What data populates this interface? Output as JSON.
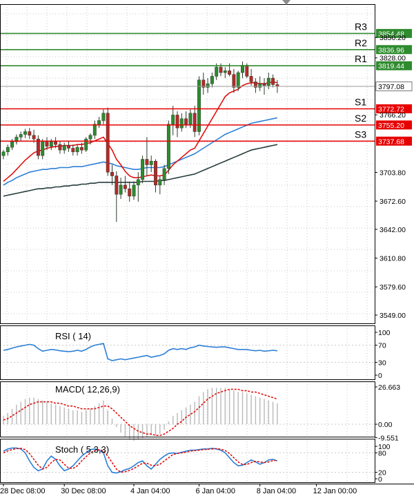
{
  "chart_data": [
    {
      "type": "candlestick",
      "y_ticks": [
        "3850.20",
        "3828.00",
        "3797.08",
        "3766.20",
        "3703.80",
        "3672.60",
        "3642.00",
        "3610.80",
        "3579.60",
        "3549.00"
      ],
      "y_tick_values": [
        3850.2,
        3828.0,
        3797.08,
        3766.2,
        3703.8,
        3672.6,
        3642.0,
        3610.8,
        3579.6,
        3549.0
      ],
      "ylim": [
        3535,
        3860
      ],
      "x_ticks": [
        "28 Dec 08:00",
        "30 Dec 08:00",
        "4 Jan 04:00",
        "6 Jan 04:00",
        "8 Jan 04:00",
        "12 Jan 00:00"
      ],
      "x_tick_index": [
        0,
        14,
        30,
        45,
        59,
        72
      ],
      "current_price": {
        "value": 3797.08,
        "label": "3797.08"
      },
      "levels": [
        {
          "name": "R3",
          "value": 3854.48,
          "label": "3854.48",
          "color": "#2e8b2e"
        },
        {
          "name": "R2",
          "value": 3836.96,
          "label": "3836.96",
          "color": "#2e8b2e"
        },
        {
          "name": "R1",
          "value": 3819.44,
          "label": "3819.44",
          "color": "#2e8b2e"
        },
        {
          "name": "S1",
          "value": 3772.72,
          "label": "3772.72",
          "color": "#e60000"
        },
        {
          "name": "S2",
          "value": 3755.2,
          "label": "3755.20",
          "color": "#e60000"
        },
        {
          "name": "S3",
          "value": 3737.68,
          "label": "3737.68",
          "color": "#e60000"
        }
      ],
      "candles": [
        {
          "o": 3722,
          "h": 3728,
          "l": 3718,
          "c": 3726
        },
        {
          "o": 3726,
          "h": 3734,
          "l": 3722,
          "c": 3731
        },
        {
          "o": 3731,
          "h": 3740,
          "l": 3728,
          "c": 3737
        },
        {
          "o": 3737,
          "h": 3745,
          "l": 3734,
          "c": 3742
        },
        {
          "o": 3742,
          "h": 3748,
          "l": 3738,
          "c": 3745
        },
        {
          "o": 3745,
          "h": 3751,
          "l": 3741,
          "c": 3748
        },
        {
          "o": 3748,
          "h": 3752,
          "l": 3740,
          "c": 3744
        },
        {
          "o": 3744,
          "h": 3750,
          "l": 3736,
          "c": 3740
        },
        {
          "o": 3740,
          "h": 3744,
          "l": 3718,
          "c": 3722
        },
        {
          "o": 3722,
          "h": 3740,
          "l": 3718,
          "c": 3738
        },
        {
          "o": 3738,
          "h": 3742,
          "l": 3728,
          "c": 3732
        },
        {
          "o": 3732,
          "h": 3740,
          "l": 3728,
          "c": 3737
        },
        {
          "o": 3737,
          "h": 3742,
          "l": 3730,
          "c": 3734
        },
        {
          "o": 3734,
          "h": 3738,
          "l": 3724,
          "c": 3728
        },
        {
          "o": 3728,
          "h": 3736,
          "l": 3724,
          "c": 3733
        },
        {
          "o": 3733,
          "h": 3738,
          "l": 3726,
          "c": 3730
        },
        {
          "o": 3730,
          "h": 3734,
          "l": 3722,
          "c": 3726
        },
        {
          "o": 3726,
          "h": 3734,
          "l": 3722,
          "c": 3731
        },
        {
          "o": 3731,
          "h": 3736,
          "l": 3724,
          "c": 3728
        },
        {
          "o": 3728,
          "h": 3742,
          "l": 3726,
          "c": 3740
        },
        {
          "o": 3740,
          "h": 3746,
          "l": 3734,
          "c": 3744
        },
        {
          "o": 3744,
          "h": 3760,
          "l": 3740,
          "c": 3756
        },
        {
          "o": 3756,
          "h": 3764,
          "l": 3752,
          "c": 3760
        },
        {
          "o": 3760,
          "h": 3772,
          "l": 3756,
          "c": 3768
        },
        {
          "o": 3768,
          "h": 3774,
          "l": 3700,
          "c": 3704
        },
        {
          "o": 3704,
          "h": 3712,
          "l": 3690,
          "c": 3700
        },
        {
          "o": 3700,
          "h": 3705,
          "l": 3650,
          "c": 3680
        },
        {
          "o": 3680,
          "h": 3698,
          "l": 3675,
          "c": 3690
        },
        {
          "o": 3690,
          "h": 3700,
          "l": 3682,
          "c": 3686
        },
        {
          "o": 3686,
          "h": 3694,
          "l": 3672,
          "c": 3678
        },
        {
          "o": 3678,
          "h": 3694,
          "l": 3674,
          "c": 3690
        },
        {
          "o": 3690,
          "h": 3704,
          "l": 3672,
          "c": 3696
        },
        {
          "o": 3696,
          "h": 3722,
          "l": 3692,
          "c": 3718
        },
        {
          "o": 3718,
          "h": 3742,
          "l": 3700,
          "c": 3712
        },
        {
          "o": 3712,
          "h": 3722,
          "l": 3704,
          "c": 3716
        },
        {
          "o": 3716,
          "h": 3718,
          "l": 3682,
          "c": 3690
        },
        {
          "o": 3690,
          "h": 3700,
          "l": 3680,
          "c": 3696
        },
        {
          "o": 3696,
          "h": 3712,
          "l": 3690,
          "c": 3708
        },
        {
          "o": 3708,
          "h": 3760,
          "l": 3702,
          "c": 3756
        },
        {
          "o": 3756,
          "h": 3776,
          "l": 3744,
          "c": 3766
        },
        {
          "o": 3766,
          "h": 3770,
          "l": 3742,
          "c": 3752
        },
        {
          "o": 3752,
          "h": 3768,
          "l": 3748,
          "c": 3762
        },
        {
          "o": 3762,
          "h": 3770,
          "l": 3752,
          "c": 3756
        },
        {
          "o": 3756,
          "h": 3772,
          "l": 3752,
          "c": 3768
        },
        {
          "o": 3768,
          "h": 3776,
          "l": 3742,
          "c": 3748
        },
        {
          "o": 3748,
          "h": 3808,
          "l": 3744,
          "c": 3804
        },
        {
          "o": 3804,
          "h": 3812,
          "l": 3788,
          "c": 3796
        },
        {
          "o": 3796,
          "h": 3806,
          "l": 3790,
          "c": 3800
        },
        {
          "o": 3800,
          "h": 3812,
          "l": 3796,
          "c": 3808
        },
        {
          "o": 3808,
          "h": 3822,
          "l": 3804,
          "c": 3818
        },
        {
          "o": 3818,
          "h": 3822,
          "l": 3808,
          "c": 3812
        },
        {
          "o": 3812,
          "h": 3818,
          "l": 3806,
          "c": 3814
        },
        {
          "o": 3814,
          "h": 3822,
          "l": 3808,
          "c": 3810
        },
        {
          "o": 3810,
          "h": 3816,
          "l": 3790,
          "c": 3796
        },
        {
          "o": 3796,
          "h": 3814,
          "l": 3792,
          "c": 3812
        },
        {
          "o": 3812,
          "h": 3824,
          "l": 3806,
          "c": 3820
        },
        {
          "o": 3820,
          "h": 3822,
          "l": 3806,
          "c": 3808
        },
        {
          "o": 3808,
          "h": 3816,
          "l": 3798,
          "c": 3802
        },
        {
          "o": 3802,
          "h": 3806,
          "l": 3790,
          "c": 3796
        },
        {
          "o": 3796,
          "h": 3808,
          "l": 3792,
          "c": 3800
        },
        {
          "o": 3800,
          "h": 3806,
          "l": 3788,
          "c": 3798
        },
        {
          "o": 3798,
          "h": 3812,
          "l": 3794,
          "c": 3806
        },
        {
          "o": 3806,
          "h": 3810,
          "l": 3796,
          "c": 3799
        },
        {
          "o": 3799,
          "h": 3804,
          "l": 3790,
          "c": 3797
        }
      ],
      "ma_fast": {
        "color": "#e01010",
        "values": [
          3694,
          3698,
          3702,
          3707,
          3712,
          3717,
          3721,
          3725,
          3727,
          3728,
          3730,
          3731,
          3732,
          3732,
          3733,
          3733,
          3733,
          3734,
          3734,
          3735,
          3736,
          3738,
          3740,
          3742,
          3735,
          3728,
          3718,
          3712,
          3705,
          3700,
          3698,
          3698,
          3699,
          3700,
          3701,
          3700,
          3700,
          3701,
          3706,
          3712,
          3716,
          3720,
          3724,
          3728,
          3730,
          3738,
          3746,
          3754,
          3762,
          3770,
          3778,
          3786,
          3790,
          3792,
          3794,
          3798,
          3800,
          3801,
          3801,
          3800,
          3800,
          3801,
          3802,
          3801
        ]
      },
      "ma_mid": {
        "color": "#2b7fd6",
        "values": [
          3690,
          3693,
          3695,
          3698,
          3700,
          3702,
          3704,
          3705,
          3706,
          3707,
          3707,
          3708,
          3708,
          3709,
          3709,
          3709,
          3710,
          3710,
          3710,
          3711,
          3712,
          3713,
          3714,
          3715,
          3714,
          3713,
          3711,
          3710,
          3709,
          3708,
          3707,
          3707,
          3708,
          3709,
          3709,
          3709,
          3709,
          3710,
          3712,
          3714,
          3716,
          3718,
          3720,
          3722,
          3724,
          3727,
          3730,
          3733,
          3736,
          3739,
          3742,
          3745,
          3747,
          3749,
          3751,
          3753,
          3755,
          3757,
          3758,
          3759,
          3760,
          3761,
          3762,
          3763
        ]
      },
      "ma_slow": {
        "color": "#253a3a",
        "values": [
          3678,
          3679,
          3680,
          3681,
          3682,
          3683,
          3684,
          3685,
          3686,
          3686,
          3687,
          3687,
          3688,
          3688,
          3689,
          3689,
          3690,
          3690,
          3691,
          3691,
          3692,
          3692,
          3693,
          3693,
          3693,
          3693,
          3693,
          3693,
          3693,
          3693,
          3693,
          3693,
          3694,
          3694,
          3694,
          3694,
          3695,
          3695,
          3696,
          3697,
          3698,
          3699,
          3700,
          3701,
          3702,
          3704,
          3706,
          3708,
          3710,
          3712,
          3714,
          3716,
          3718,
          3720,
          3722,
          3724,
          3726,
          3728,
          3729,
          3730,
          3731,
          3732,
          3733,
          3734
        ]
      }
    },
    {
      "type": "line",
      "title": "RSI ( 14)",
      "y_ticks": [
        "100",
        "70",
        "30",
        "0"
      ],
      "y_tick_values": [
        100,
        70,
        30,
        0
      ],
      "ylim": [
        0,
        100
      ],
      "series": [
        {
          "color": "#2b7fd6",
          "values": [
            58,
            60,
            63,
            66,
            68,
            70,
            72,
            70,
            62,
            56,
            58,
            60,
            59,
            57,
            56,
            55,
            56,
            58,
            56,
            60,
            66,
            70,
            72,
            74,
            38,
            34,
            36,
            38,
            36,
            38,
            40,
            42,
            44,
            46,
            42,
            44,
            46,
            50,
            58,
            62,
            60,
            62,
            60,
            64,
            66,
            70,
            68,
            67,
            66,
            65,
            66,
            66,
            64,
            62,
            60,
            60,
            60,
            58,
            57,
            58,
            56,
            57,
            58,
            57
          ]
        }
      ]
    },
    {
      "type": "bar+line",
      "title": "MACD( 12,26,9)",
      "y_ticks": [
        "26.663",
        "0.00",
        "-9.551"
      ],
      "y_tick_values": [
        26.663,
        0.0,
        -9.551
      ],
      "ylim": [
        -12,
        30
      ],
      "histogram": {
        "color": "#b8b8b8",
        "values": [
          6,
          8,
          11,
          14,
          16,
          18,
          19,
          19,
          18,
          17,
          16,
          15,
          14,
          13,
          12,
          11,
          10,
          10,
          9,
          10,
          11,
          13,
          15,
          17,
          10,
          4,
          -2,
          -6,
          -9,
          -11,
          -12,
          -11,
          -10,
          -9,
          -8,
          -8,
          -7,
          -4,
          2,
          6,
          8,
          10,
          12,
          14,
          16,
          20,
          23,
          25,
          26,
          26,
          26,
          26,
          25,
          24,
          23,
          23,
          22,
          21,
          20,
          19,
          18,
          17,
          16,
          15
        ]
      },
      "signal": {
        "color": "#e01010",
        "values": [
          3,
          4,
          6,
          8,
          10,
          12,
          14,
          15,
          16,
          16,
          16,
          16,
          15,
          15,
          14,
          13,
          13,
          12,
          11,
          11,
          11,
          11,
          12,
          13,
          13,
          11,
          8,
          5,
          2,
          -1,
          -3,
          -5,
          -6,
          -7,
          -7,
          -8,
          -8,
          -7,
          -5,
          -3,
          0,
          2,
          5,
          7,
          9,
          12,
          15,
          18,
          20,
          22,
          23,
          24,
          25,
          25,
          25,
          24,
          24,
          23,
          23,
          22,
          21,
          20,
          19,
          18
        ]
      }
    },
    {
      "type": "line",
      "title": "Stoch ( 5,3,3)",
      "y_ticks": [
        "100",
        "80",
        "20",
        "0"
      ],
      "y_tick_values": [
        100,
        80,
        20,
        0
      ],
      "ylim": [
        0,
        100
      ],
      "series": [
        {
          "color": "#2b7fd6",
          "values": [
            85,
            92,
            95,
            95,
            92,
            80,
            55,
            35,
            25,
            30,
            55,
            70,
            60,
            40,
            25,
            30,
            40,
            55,
            70,
            80,
            90,
            92,
            88,
            80,
            40,
            20,
            18,
            22,
            28,
            32,
            40,
            50,
            55,
            40,
            30,
            45,
            60,
            70,
            78,
            80,
            78,
            82,
            85,
            88,
            88,
            90,
            92,
            92,
            94,
            92,
            88,
            80,
            65,
            50,
            40,
            42,
            50,
            58,
            52,
            45,
            50,
            58,
            60,
            55
          ]
        },
        {
          "color": "#e01010",
          "values": [
            80,
            86,
            90,
            93,
            94,
            90,
            78,
            60,
            42,
            30,
            35,
            50,
            60,
            58,
            45,
            33,
            32,
            40,
            55,
            68,
            80,
            87,
            90,
            86,
            70,
            50,
            30,
            20,
            22,
            26,
            32,
            40,
            48,
            48,
            42,
            40,
            45,
            55,
            65,
            75,
            78,
            80,
            82,
            85,
            87,
            88,
            90,
            91,
            92,
            93,
            91,
            87,
            78,
            65,
            52,
            44,
            44,
            50,
            54,
            52,
            50,
            52,
            56,
            57
          ]
        }
      ]
    }
  ]
}
